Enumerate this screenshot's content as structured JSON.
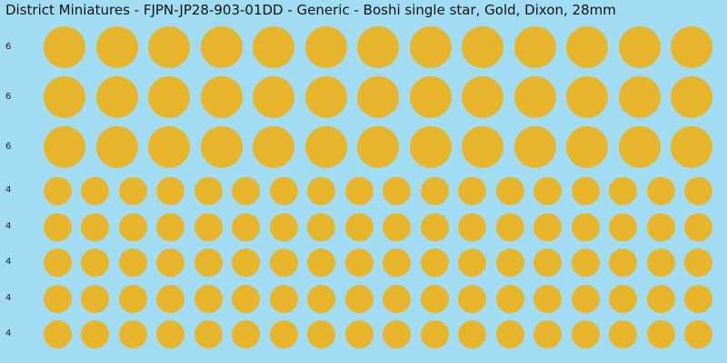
{
  "sheet": {
    "title": "District Miniatures - FJPN-JP28-903-01DD - Generic - Boshi single star, Gold, Dixon, 28mm",
    "background_color": "#a2dcf3",
    "dot_color": "#e7b52b",
    "rows": [
      {
        "label": "6",
        "count": 13
      },
      {
        "label": "6",
        "count": 13
      },
      {
        "label": "6",
        "count": 13
      },
      {
        "label": "4",
        "count": 18
      },
      {
        "label": "4",
        "count": 18
      },
      {
        "label": "4",
        "count": 18
      },
      {
        "label": "4",
        "count": 18
      },
      {
        "label": "4",
        "count": 18
      }
    ]
  }
}
